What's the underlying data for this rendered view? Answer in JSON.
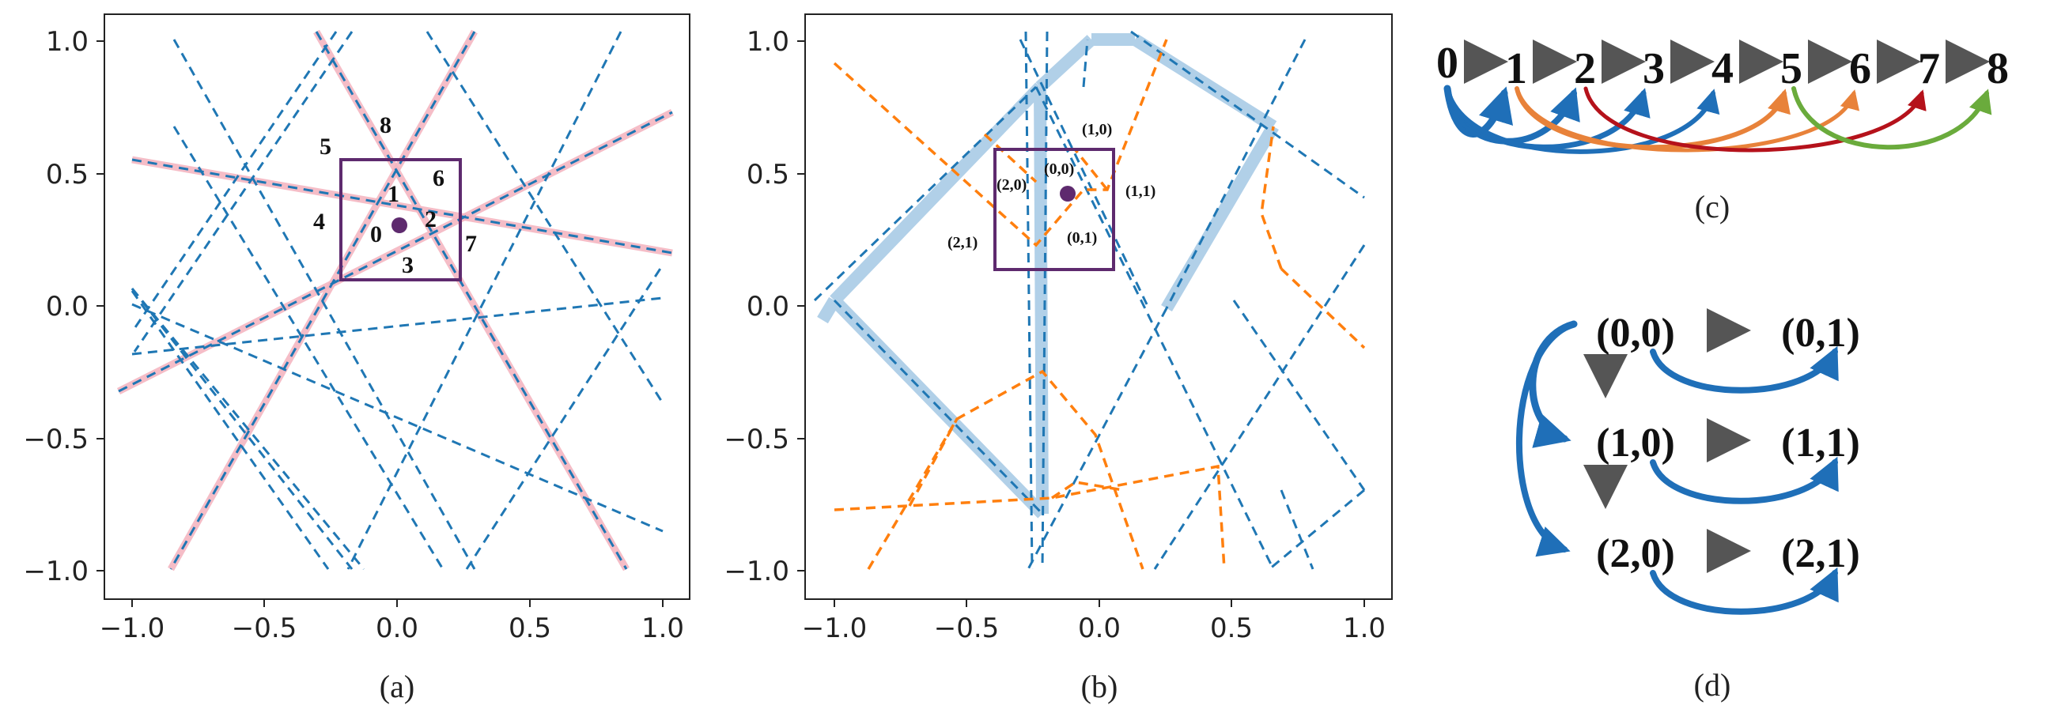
{
  "panel_a": {
    "caption": "(a)",
    "xticks": [
      "−1.0",
      "−0.5",
      "0.0",
      "0.5",
      "1.0"
    ],
    "yticks": [
      "1.0",
      "0.5",
      "0.0",
      "−0.5",
      "−1.0"
    ],
    "region_labels": [
      "0",
      "1",
      "2",
      "3",
      "4",
      "5",
      "6",
      "7",
      "8"
    ]
  },
  "panel_b": {
    "caption": "(b)",
    "xticks": [
      "−1.0",
      "−0.5",
      "0.0",
      "0.5",
      "1.0"
    ],
    "yticks": [
      "1.0",
      "0.5",
      "0.0",
      "−0.5",
      "−1.0"
    ],
    "cell_labels": [
      "(0,0)",
      "(1,0)",
      "(1,1)",
      "(2,0)",
      "(0,1)",
      "(2,1)"
    ]
  },
  "panel_c": {
    "caption": "(c)",
    "nodes": [
      "0",
      "1",
      "2",
      "3",
      "4",
      "5",
      "6",
      "7",
      "8"
    ]
  },
  "panel_d": {
    "caption": "(d)",
    "nodes": [
      "(0,0)",
      "(0,1)",
      "(1,0)",
      "(1,1)",
      "(2,0)",
      "(2,1)"
    ]
  },
  "colors": {
    "blue": "#1f77b4",
    "orange": "#ff7f0e",
    "pink": "#f4b6c2",
    "purple": "#5e2a6e",
    "dark_red": "#b5121b",
    "green": "#6aab3c",
    "gray": "#555555",
    "light_blue": "#a9cbe6"
  }
}
